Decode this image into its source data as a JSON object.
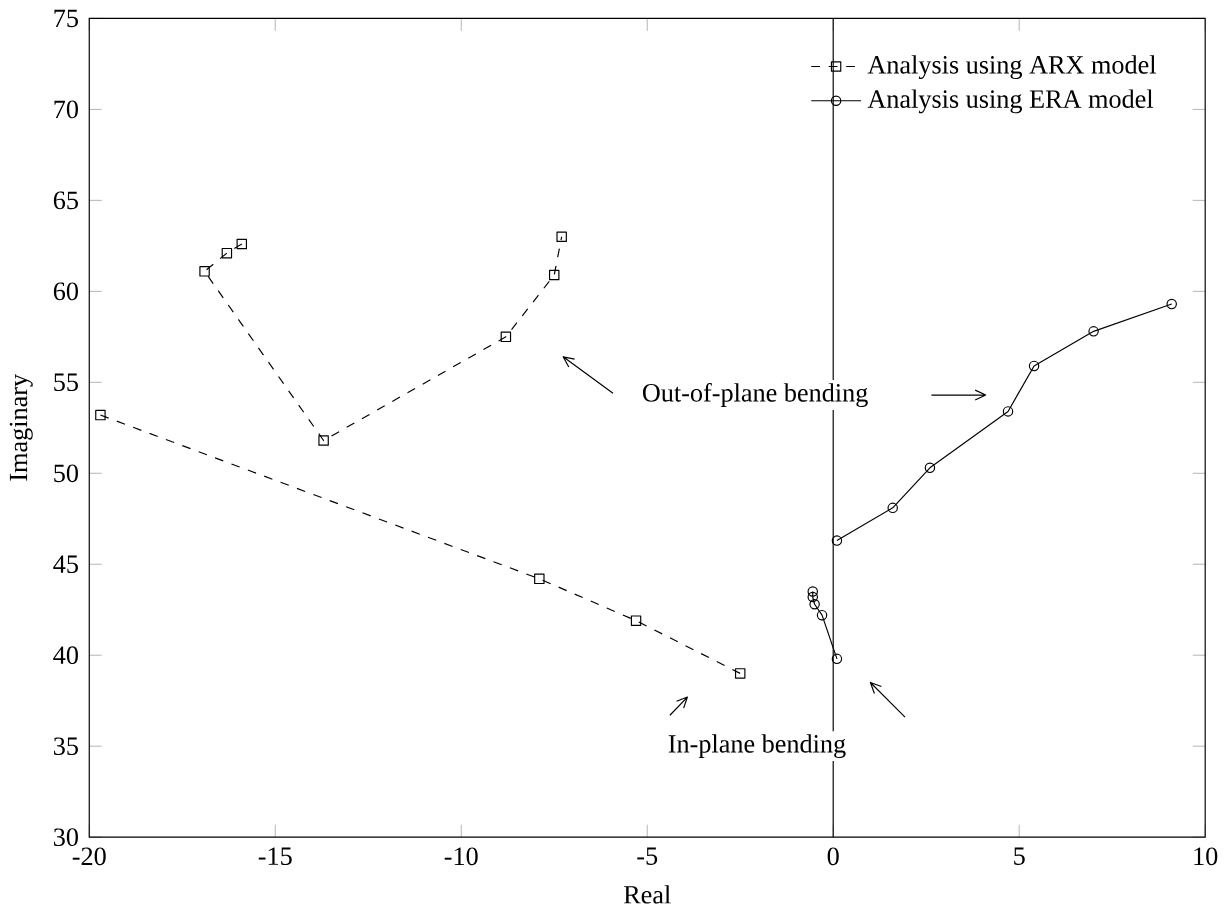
{
  "chart_data": {
    "type": "line",
    "xlabel": "Real",
    "ylabel": "Imaginary",
    "xlim": [
      -20,
      10
    ],
    "xticks": [
      -20,
      -15,
      -10,
      -5,
      0,
      5,
      10
    ],
    "ylim": [
      30,
      75
    ],
    "yticks": [
      30,
      35,
      40,
      45,
      50,
      55,
      60,
      65,
      70,
      75
    ],
    "legend": "top right",
    "series": [
      {
        "name": "Analysis using ARX model",
        "color": "#000000",
        "marker": "square",
        "line_style": "dashed",
        "x": [
          -19.7,
          -7.9,
          -5.3,
          -2.5,
          null,
          -15.9,
          -16.3,
          -16.9,
          -13.7,
          -8.8,
          -7.5,
          -7.3
        ],
        "values": [
          53.2,
          44.2,
          41.9,
          39.0,
          null,
          62.6,
          62.1,
          61.1,
          51.8,
          57.5,
          60.9,
          63.0
        ]
      },
      {
        "name": "Analysis using ERA model",
        "color": "#000000",
        "marker": "circle",
        "line_style": "solid",
        "x": [
          -0.55,
          -0.55,
          -0.5,
          -0.3,
          0.1,
          null,
          0.1,
          1.6,
          2.6,
          4.7,
          5.4,
          7.0,
          9.1
        ],
        "values": [
          43.5,
          43.2,
          42.8,
          42.2,
          39.8,
          null,
          46.3,
          48.1,
          50.3,
          53.4,
          55.9,
          57.8,
          59.3
        ]
      }
    ],
    "ref_lines": [
      {
        "axis": "x",
        "value": 0,
        "color": "#000000"
      }
    ],
    "annotations": [
      "Out-of-plane bending",
      "In-plane bending"
    ]
  }
}
